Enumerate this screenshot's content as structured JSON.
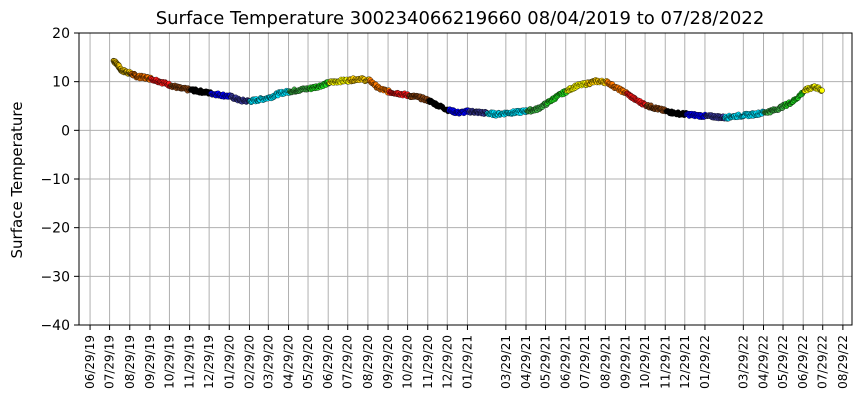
{
  "chart_data": {
    "type": "scatter",
    "title": "Surface Temperature 300234066219660  08/04/2019 to 07/28/2022",
    "ylabel": "Surface Temperature",
    "xlabel": "",
    "ylim": [
      -40,
      20
    ],
    "yticks": [
      20,
      10,
      0,
      -10,
      -20,
      -30,
      -40
    ],
    "xlim": [
      "2019-06-12",
      "2022-09-12"
    ],
    "grid": true,
    "legend": "none",
    "xticks": [
      {
        "date": "2019-06-29",
        "label": "06/29/19"
      },
      {
        "date": "2019-07-29",
        "label": "07/29/19"
      },
      {
        "date": "2019-08-29",
        "label": "08/29/19"
      },
      {
        "date": "2019-09-29",
        "label": "09/29/19"
      },
      {
        "date": "2019-10-29",
        "label": "10/29/19"
      },
      {
        "date": "2019-11-29",
        "label": "11/29/19"
      },
      {
        "date": "2019-12-29",
        "label": "12/29/19"
      },
      {
        "date": "2020-01-29",
        "label": "01/29/20"
      },
      {
        "date": "2020-02-29",
        "label": "02/29/20"
      },
      {
        "date": "2020-03-29",
        "label": "03/29/20"
      },
      {
        "date": "2020-04-29",
        "label": "04/29/20"
      },
      {
        "date": "2020-05-29",
        "label": "05/29/20"
      },
      {
        "date": "2020-06-29",
        "label": "06/29/20"
      },
      {
        "date": "2020-07-29",
        "label": "07/29/20"
      },
      {
        "date": "2020-08-29",
        "label": "08/29/20"
      },
      {
        "date": "2020-09-29",
        "label": "09/29/20"
      },
      {
        "date": "2020-10-29",
        "label": "10/29/20"
      },
      {
        "date": "2020-11-29",
        "label": "11/29/20"
      },
      {
        "date": "2020-12-29",
        "label": "12/29/20"
      },
      {
        "date": "2021-01-29",
        "label": "01/29/21"
      },
      {
        "date": "2021-03-29",
        "label": "03/29/21"
      },
      {
        "date": "2021-04-29",
        "label": "04/29/21"
      },
      {
        "date": "2021-05-29",
        "label": "05/29/21"
      },
      {
        "date": "2021-06-29",
        "label": "06/29/21"
      },
      {
        "date": "2021-07-29",
        "label": "07/29/21"
      },
      {
        "date": "2021-08-29",
        "label": "08/29/21"
      },
      {
        "date": "2021-09-29",
        "label": "09/29/21"
      },
      {
        "date": "2021-10-29",
        "label": "10/29/21"
      },
      {
        "date": "2021-11-29",
        "label": "11/29/21"
      },
      {
        "date": "2021-12-29",
        "label": "12/29/21"
      },
      {
        "date": "2022-01-29",
        "label": "01/29/22"
      },
      {
        "date": "2022-03-29",
        "label": "03/29/22"
      },
      {
        "date": "2022-04-29",
        "label": "04/29/22"
      },
      {
        "date": "2022-05-29",
        "label": "05/29/22"
      },
      {
        "date": "2022-06-29",
        "label": "06/29/22"
      },
      {
        "date": "2022-07-29",
        "label": "07/29/22"
      },
      {
        "date": "2022-08-29",
        "label": "08/29/22"
      }
    ],
    "series": [
      {
        "color_by": "month",
        "month_colors": [
          "#0000ff",
          "#3a3a9c",
          "#00e5ff",
          "#00e5ff",
          "#3cb043",
          "#22dd22",
          "#ffff00",
          "#ffd000",
          "#ff7a00",
          "#ff1a1a",
          "#8b4513",
          "#000000"
        ],
        "points": [
          {
            "x": "2019-08-04",
            "y": 14.3
          },
          {
            "x": "2019-08-10",
            "y": 13.6
          },
          {
            "x": "2019-08-16",
            "y": 12.3
          },
          {
            "x": "2019-08-24",
            "y": 12.0
          },
          {
            "x": "2019-09-01",
            "y": 11.6
          },
          {
            "x": "2019-09-10",
            "y": 11.0
          },
          {
            "x": "2019-09-20",
            "y": 10.9
          },
          {
            "x": "2019-10-01",
            "y": 10.6
          },
          {
            "x": "2019-10-15",
            "y": 10.0
          },
          {
            "x": "2019-11-01",
            "y": 9.2
          },
          {
            "x": "2019-11-15",
            "y": 8.6
          },
          {
            "x": "2019-12-01",
            "y": 8.3
          },
          {
            "x": "2019-12-15",
            "y": 8.0
          },
          {
            "x": "2020-01-01",
            "y": 7.6
          },
          {
            "x": "2020-01-15",
            "y": 7.3
          },
          {
            "x": "2020-02-01",
            "y": 6.9
          },
          {
            "x": "2020-02-15",
            "y": 6.1
          },
          {
            "x": "2020-03-01",
            "y": 6.0
          },
          {
            "x": "2020-03-15",
            "y": 6.3
          },
          {
            "x": "2020-04-01",
            "y": 6.8
          },
          {
            "x": "2020-04-15",
            "y": 7.6
          },
          {
            "x": "2020-05-01",
            "y": 8.0
          },
          {
            "x": "2020-05-15",
            "y": 8.3
          },
          {
            "x": "2020-06-01",
            "y": 8.6
          },
          {
            "x": "2020-06-15",
            "y": 9.1
          },
          {
            "x": "2020-07-01",
            "y": 9.8
          },
          {
            "x": "2020-07-15",
            "y": 10.1
          },
          {
            "x": "2020-08-01",
            "y": 10.3
          },
          {
            "x": "2020-08-15",
            "y": 10.6
          },
          {
            "x": "2020-09-01",
            "y": 10.2
          },
          {
            "x": "2020-09-15",
            "y": 8.6
          },
          {
            "x": "2020-10-01",
            "y": 7.9
          },
          {
            "x": "2020-10-15",
            "y": 7.6
          },
          {
            "x": "2020-11-01",
            "y": 7.1
          },
          {
            "x": "2020-11-15",
            "y": 6.8
          },
          {
            "x": "2020-12-01",
            "y": 6.1
          },
          {
            "x": "2020-12-15",
            "y": 5.1
          },
          {
            "x": "2021-01-01",
            "y": 4.1
          },
          {
            "x": "2021-01-15",
            "y": 3.6
          },
          {
            "x": "2021-02-01",
            "y": 3.9
          },
          {
            "x": "2021-02-15",
            "y": 3.7
          },
          {
            "x": "2021-03-01",
            "y": 3.5
          },
          {
            "x": "2021-03-15",
            "y": 3.3
          },
          {
            "x": "2021-04-01",
            "y": 3.6
          },
          {
            "x": "2021-04-15",
            "y": 3.7
          },
          {
            "x": "2021-05-01",
            "y": 4.0
          },
          {
            "x": "2021-05-15",
            "y": 4.3
          },
          {
            "x": "2021-06-01",
            "y": 5.6
          },
          {
            "x": "2021-06-15",
            "y": 6.9
          },
          {
            "x": "2021-07-01",
            "y": 8.1
          },
          {
            "x": "2021-07-15",
            "y": 9.1
          },
          {
            "x": "2021-08-01",
            "y": 9.6
          },
          {
            "x": "2021-08-15",
            "y": 10.1
          },
          {
            "x": "2021-09-01",
            "y": 9.9
          },
          {
            "x": "2021-09-15",
            "y": 8.7
          },
          {
            "x": "2021-10-01",
            "y": 7.6
          },
          {
            "x": "2021-10-15",
            "y": 6.2
          },
          {
            "x": "2021-11-01",
            "y": 5.1
          },
          {
            "x": "2021-11-15",
            "y": 4.5
          },
          {
            "x": "2021-12-01",
            "y": 3.9
          },
          {
            "x": "2021-12-15",
            "y": 3.5
          },
          {
            "x": "2022-01-01",
            "y": 3.3
          },
          {
            "x": "2022-01-15",
            "y": 3.1
          },
          {
            "x": "2022-02-01",
            "y": 2.9
          },
          {
            "x": "2022-02-15",
            "y": 2.8
          },
          {
            "x": "2022-03-01",
            "y": 2.6
          },
          {
            "x": "2022-03-15",
            "y": 2.9
          },
          {
            "x": "2022-04-01",
            "y": 3.1
          },
          {
            "x": "2022-04-15",
            "y": 3.3
          },
          {
            "x": "2022-05-01",
            "y": 3.7
          },
          {
            "x": "2022-05-15",
            "y": 4.1
          },
          {
            "x": "2022-06-01",
            "y": 5.1
          },
          {
            "x": "2022-06-15",
            "y": 6.1
          },
          {
            "x": "2022-07-01",
            "y": 8.1
          },
          {
            "x": "2022-07-15",
            "y": 9.0
          },
          {
            "x": "2022-07-28",
            "y": 8.2
          }
        ]
      }
    ]
  }
}
